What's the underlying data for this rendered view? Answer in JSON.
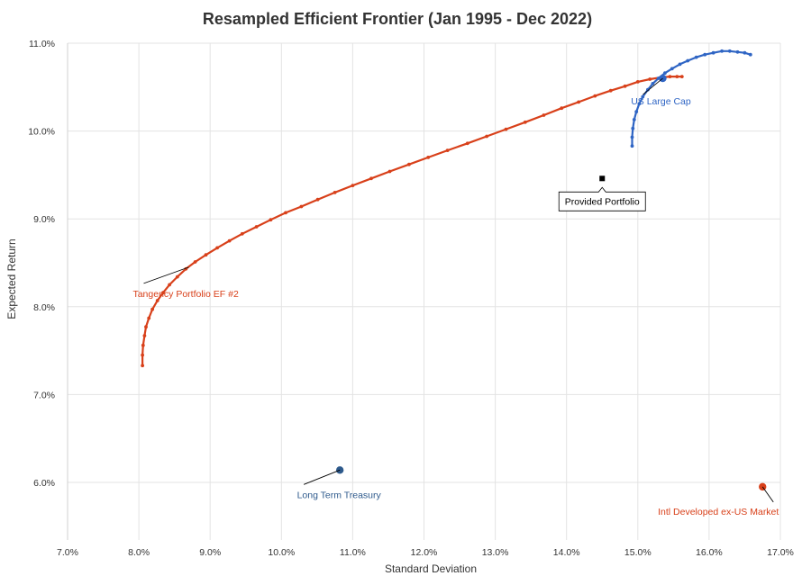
{
  "chart_data": {
    "type": "scatter",
    "title": "Resampled Efficient Frontier (Jan 1995 - Dec 2022)",
    "xlabel": "Standard Deviation",
    "ylabel": "Expected Return",
    "xlim": [
      7.0,
      17.0
    ],
    "ylim": [
      5.4,
      11.0
    ],
    "x_ticks": [
      "7.0%",
      "8.0%",
      "9.0%",
      "10.0%",
      "11.0%",
      "12.0%",
      "13.0%",
      "14.0%",
      "15.0%",
      "16.0%",
      "17.0%"
    ],
    "y_ticks": [
      "6.0%",
      "7.0%",
      "8.0%",
      "9.0%",
      "10.0%",
      "11.0%"
    ],
    "grid": true,
    "colors": {
      "orange": "#d8401a",
      "blue": "#2f65c4",
      "dark_blue": "#2e5a8c",
      "black": "#000000"
    },
    "series": [
      {
        "color": "orange",
        "x": [
          8.05,
          8.05,
          8.06,
          8.08,
          8.1,
          8.14,
          8.19,
          8.26,
          8.34,
          8.43,
          8.54,
          8.66,
          8.79,
          8.94,
          9.1,
          9.27,
          9.45,
          9.65,
          9.85,
          10.06,
          10.28,
          10.51,
          10.75,
          11.0,
          11.26,
          11.52,
          11.79,
          12.06,
          12.33,
          12.61,
          12.88,
          13.15,
          13.42,
          13.68,
          13.93,
          14.17,
          14.4,
          14.62,
          14.82,
          15.0,
          15.17,
          15.32,
          15.45,
          15.55,
          15.62
        ],
        "y": [
          7.33,
          7.45,
          7.56,
          7.67,
          7.77,
          7.87,
          7.97,
          8.07,
          8.16,
          8.25,
          8.34,
          8.43,
          8.51,
          8.59,
          8.67,
          8.75,
          8.83,
          8.91,
          8.99,
          9.07,
          9.14,
          9.22,
          9.3,
          9.38,
          9.46,
          9.54,
          9.62,
          9.7,
          9.78,
          9.86,
          9.94,
          10.02,
          10.1,
          10.18,
          10.26,
          10.33,
          10.4,
          10.46,
          10.51,
          10.56,
          10.59,
          10.61,
          10.62,
          10.62,
          10.62
        ]
      },
      {
        "color": "blue",
        "x": [
          14.92,
          14.92,
          14.93,
          14.95,
          14.98,
          15.02,
          15.07,
          15.14,
          15.21,
          15.29,
          15.38,
          15.48,
          15.59,
          15.7,
          15.82,
          15.94,
          16.06,
          16.18,
          16.29,
          16.4,
          16.5,
          16.58
        ],
        "y": [
          9.83,
          9.93,
          10.03,
          10.13,
          10.22,
          10.31,
          10.39,
          10.47,
          10.54,
          10.6,
          10.66,
          10.71,
          10.76,
          10.8,
          10.84,
          10.87,
          10.89,
          10.91,
          10.91,
          10.9,
          10.89,
          10.87
        ]
      }
    ],
    "points": [
      {
        "label": "US Large Cap",
        "x": 15.35,
        "y": 10.6,
        "color": "blue"
      },
      {
        "label": "Long Term Treasury",
        "x": 10.82,
        "y": 6.14,
        "color": "dark_blue"
      },
      {
        "label": "Intl Developed ex-US Market",
        "x": 16.75,
        "y": 5.95,
        "color": "orange"
      },
      {
        "label": "Provided Portfolio",
        "x": 14.5,
        "y": 9.46,
        "color": "black"
      }
    ],
    "annotations": [
      {
        "text": "Tangency Portfolio EF #2",
        "x": 8.7,
        "y": 8.45,
        "color": "orange"
      },
      {
        "text": "US Large Cap",
        "x": 15.35,
        "y": 10.6,
        "color": "blue"
      },
      {
        "text": "Provided Portfolio",
        "x": 14.5,
        "y": 9.46,
        "color": "black"
      },
      {
        "text": "Long Term Treasury",
        "x": 10.82,
        "y": 6.14,
        "color": "dark_blue"
      },
      {
        "text": "Intl Developed ex-US Market",
        "x": 16.75,
        "y": 5.95,
        "color": "orange"
      }
    ]
  }
}
